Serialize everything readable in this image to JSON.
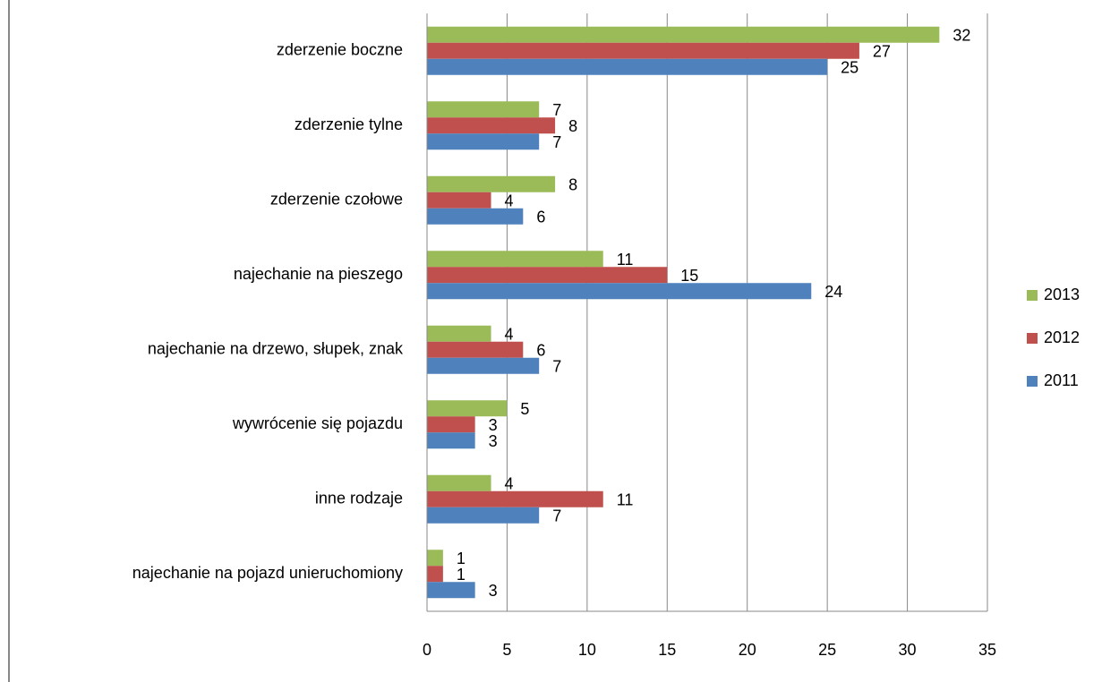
{
  "chart_data": {
    "type": "bar",
    "orientation": "horizontal",
    "categories": [
      "zderzenie boczne",
      "zderzenie tylne",
      "zderzenie czołowe",
      "najechanie na pieszego",
      "najechanie na drzewo, słupek, znak",
      "wywrócenie się pojazdu",
      "inne rodzaje",
      "najechanie na pojazd unieruchomiony"
    ],
    "series": [
      {
        "name": "2013",
        "color": "#9bbb59",
        "values": [
          32,
          7,
          8,
          11,
          4,
          5,
          4,
          1
        ]
      },
      {
        "name": "2012",
        "color": "#c0504d",
        "values": [
          27,
          8,
          4,
          15,
          6,
          3,
          11,
          1
        ]
      },
      {
        "name": "2011",
        "color": "#4f81bd",
        "values": [
          25,
          7,
          6,
          24,
          7,
          3,
          7,
          3
        ]
      }
    ],
    "xlim": [
      0,
      35
    ],
    "xticks": [
      0,
      5,
      10,
      15,
      20,
      25,
      30,
      35
    ],
    "grid": true,
    "legend": "right"
  }
}
